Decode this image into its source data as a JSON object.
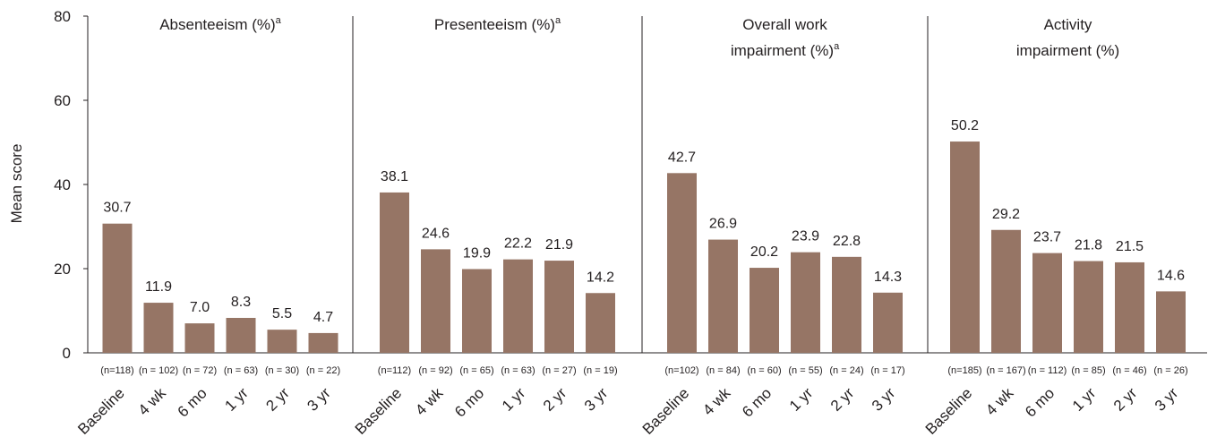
{
  "chart_data": {
    "type": "bar",
    "ylabel": "Mean score",
    "ylim": [
      0,
      80
    ],
    "yticks": [
      "0",
      "20",
      "40",
      "60",
      "80"
    ],
    "grid": false,
    "bar_color": "#967565",
    "categories": [
      "Baseline",
      "4 wk",
      "6 mo",
      "1 yr",
      "2 yr",
      "3 yr"
    ],
    "panels": [
      {
        "title_lines": [
          "Absenteeism (%)"
        ],
        "superscript": "a",
        "values": [
          30.7,
          11.9,
          7.0,
          8.3,
          5.5,
          4.7
        ],
        "value_labels": [
          "30.7",
          "11.9",
          "7.0",
          "8.3",
          "5.5",
          "4.7"
        ],
        "n_labels": [
          "(n=118)",
          "(n = 102)",
          "(n = 72)",
          "(n = 63)",
          "(n = 30)",
          "(n = 22)"
        ]
      },
      {
        "title_lines": [
          "Presenteeism (%)"
        ],
        "superscript": "a",
        "values": [
          38.1,
          24.6,
          19.9,
          22.2,
          21.9,
          14.2
        ],
        "value_labels": [
          "38.1",
          "24.6",
          "19.9",
          "22.2",
          "21.9",
          "14.2"
        ],
        "n_labels": [
          "(n=112)",
          "(n = 92)",
          "(n = 65)",
          "(n = 63)",
          "(n = 27)",
          "(n = 19)"
        ]
      },
      {
        "title_lines": [
          "Overall work",
          "impairment (%)"
        ],
        "superscript": "a",
        "values": [
          42.7,
          26.9,
          20.2,
          23.9,
          22.8,
          14.3
        ],
        "value_labels": [
          "42.7",
          "26.9",
          "20.2",
          "23.9",
          "22.8",
          "14.3"
        ],
        "n_labels": [
          "(n=102)",
          "(n = 84)",
          "(n = 60)",
          "(n = 55)",
          "(n = 24)",
          "(n = 17)"
        ]
      },
      {
        "title_lines": [
          "Activity",
          "impairment (%)"
        ],
        "superscript": "",
        "values": [
          50.2,
          29.2,
          23.7,
          21.8,
          21.5,
          14.6
        ],
        "value_labels": [
          "50.2",
          "29.2",
          "23.7",
          "21.8",
          "21.5",
          "14.6"
        ],
        "n_labels": [
          "(n=185)",
          "(n = 167)",
          "(n = 112)",
          "(n = 85)",
          "(n = 46)",
          "(n = 26)"
        ]
      }
    ]
  }
}
